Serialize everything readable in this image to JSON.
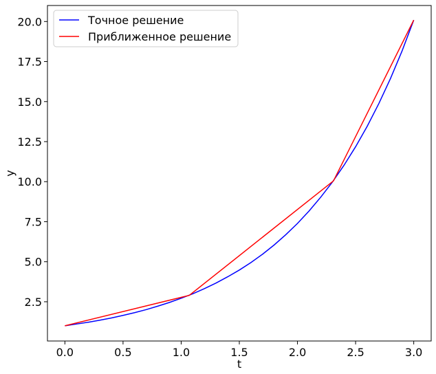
{
  "chart_data": {
    "type": "line",
    "xlabel": "t",
    "ylabel": "y",
    "xlim": [
      -0.15,
      3.15
    ],
    "ylim": [
      0.05,
      21.0
    ],
    "xticks": [
      0.0,
      0.5,
      1.0,
      1.5,
      2.0,
      2.5,
      3.0
    ],
    "xtick_labels": [
      "0.0",
      "0.5",
      "1.0",
      "1.5",
      "2.0",
      "2.5",
      "3.0"
    ],
    "yticks": [
      2.5,
      5.0,
      7.5,
      10.0,
      12.5,
      15.0,
      17.5,
      20.0
    ],
    "ytick_labels": [
      "2.5",
      "5.0",
      "7.5",
      "10.0",
      "12.5",
      "15.0",
      "17.5",
      "20.0"
    ],
    "grid": false,
    "legend_position": "top-left",
    "series": [
      {
        "name": "Точное решение",
        "color": "#0000ff",
        "x": [
          0.0,
          0.1,
          0.2,
          0.3,
          0.4,
          0.5,
          0.6,
          0.7,
          0.8,
          0.9,
          1.0,
          1.1,
          1.2,
          1.3,
          1.4,
          1.5,
          1.6,
          1.7,
          1.8,
          1.9,
          2.0,
          2.1,
          2.2,
          2.3,
          2.4,
          2.5,
          2.6,
          2.7,
          2.8,
          2.9,
          3.0
        ],
        "y": [
          1.0,
          1.11,
          1.22,
          1.35,
          1.49,
          1.65,
          1.82,
          2.01,
          2.23,
          2.46,
          2.72,
          3.0,
          3.32,
          3.67,
          4.06,
          4.48,
          4.95,
          5.47,
          6.05,
          6.69,
          7.39,
          8.17,
          9.03,
          9.97,
          11.02,
          12.18,
          13.46,
          14.88,
          16.44,
          18.17,
          20.09
        ]
      },
      {
        "name": "Приближенное решение",
        "color": "#ff0000",
        "x": [
          0.0,
          1.07,
          2.31,
          3.0
        ],
        "y": [
          1.0,
          2.9,
          10.05,
          20.09
        ]
      }
    ]
  }
}
